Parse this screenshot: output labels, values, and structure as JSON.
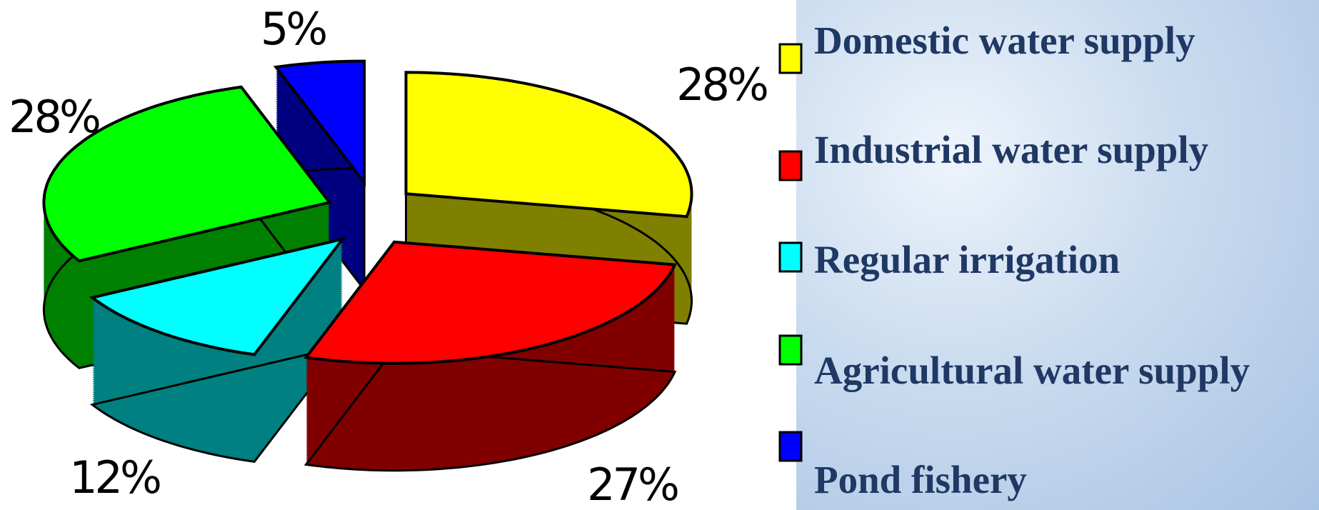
{
  "chart_data": {
    "type": "pie",
    "categories": [
      "Domestic water supply",
      "Industrial water supply",
      "Regular irrigation",
      "Agricultural water supply",
      "Pond fishery"
    ],
    "values": [
      28,
      27,
      12,
      28,
      5
    ],
    "value_labels": [
      "28%",
      "27%",
      "12%",
      "28%",
      "5%"
    ],
    "colors": [
      "#ffff00",
      "#ff0000",
      "#00ffff",
      "#00ff00",
      "#0000ff"
    ]
  }
}
